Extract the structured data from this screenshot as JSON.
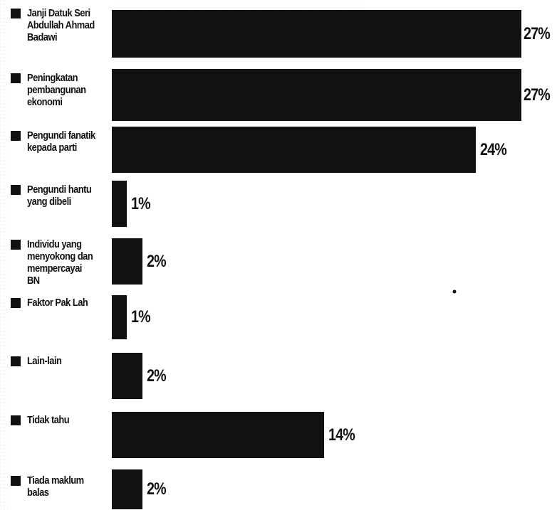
{
  "chart_data": {
    "type": "bar",
    "orientation": "horizontal",
    "categories": [
      "Janji Datuk Seri Abdullah Ahmad Badawi",
      "Peningkatan pembangunan ekonomi",
      "Pengundi fanatik kepada parti",
      "Pengundi hantu yang dibeli",
      "Individu yang menyokong dan mempercayai BN",
      "Faktor Pak Lah",
      "Lain-lain",
      "Tidak tahu",
      "Tiada maklum balas"
    ],
    "values": [
      27,
      27,
      24,
      1,
      2,
      1,
      2,
      14,
      2
    ],
    "value_labels": [
      "27%",
      "27%",
      "24%",
      "1%",
      "2%",
      "1%",
      "2%",
      "14%",
      "2%"
    ],
    "title": "",
    "xlabel": "",
    "ylabel": "",
    "grid": false,
    "legend": "none",
    "bar_color": "#111111"
  }
}
